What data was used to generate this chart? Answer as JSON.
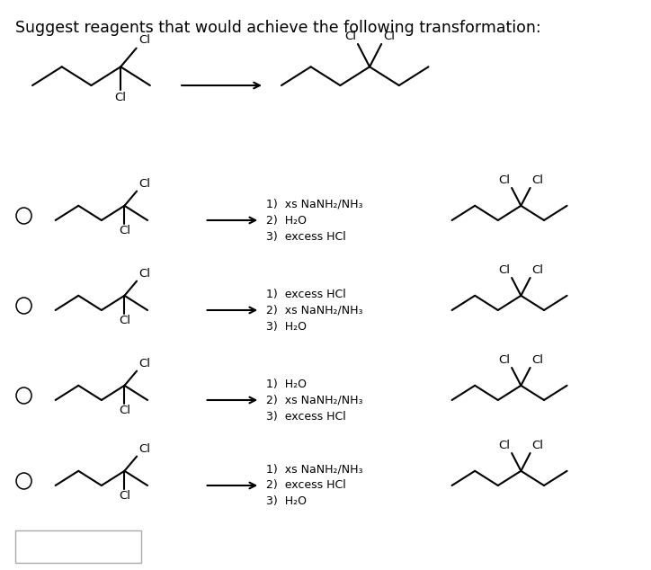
{
  "title": "Suggest reagents that would achieve the following transformation:",
  "title_color": "#000000",
  "title_fontsize": 12.5,
  "background_color": "#ffffff",
  "options": [
    {
      "steps": [
        "1)  xs NaNH₂/NH₃",
        "2)  H₂O",
        "3)  excess HCl"
      ]
    },
    {
      "steps": [
        "1)  excess HCl",
        "2)  xs NaNH₂/NH₃",
        "3)  H₂O"
      ]
    },
    {
      "steps": [
        "1)  H₂O",
        "2)  xs NaNH₂/NH₃",
        "3)  excess HCl"
      ]
    },
    {
      "steps": [
        "1)  xs NaNH₂/NH₃",
        "2)  excess HCl",
        "3)  H₂O"
      ]
    }
  ]
}
